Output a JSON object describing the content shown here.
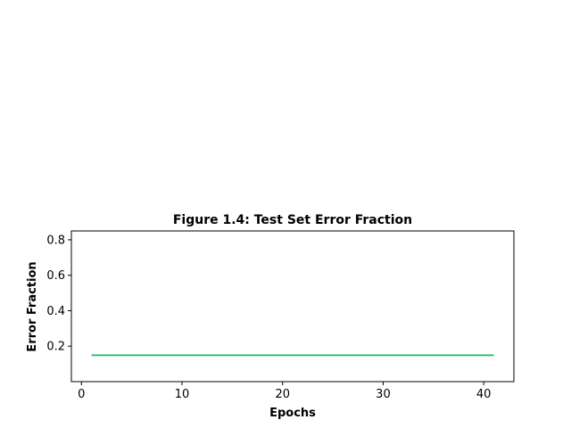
{
  "chart_data": {
    "type": "line",
    "title": "Figure 1.4: Test Set Error Fraction",
    "xlabel": "Epochs",
    "ylabel": "Error Fraction",
    "xlim": [
      -1.0,
      43.0
    ],
    "ylim": [
      0.0,
      0.85
    ],
    "xticks": [
      0,
      10,
      20,
      30,
      40
    ],
    "yticks": [
      0.2,
      0.4,
      0.6,
      0.8
    ],
    "xtick_labels": [
      "0",
      "10",
      "20",
      "30",
      "40"
    ],
    "ytick_labels": [
      "0.2",
      "0.4",
      "0.6",
      "0.8"
    ],
    "grid": false,
    "series": [
      {
        "color": "#1dbb5c",
        "x": [
          1,
          41
        ],
        "y": [
          0.149,
          0.149
        ]
      }
    ]
  }
}
